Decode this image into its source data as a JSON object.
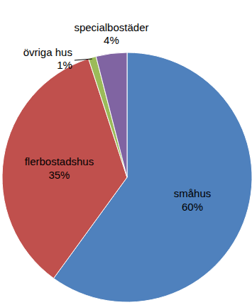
{
  "chart_data": {
    "type": "pie",
    "categories": [
      "småhus",
      "flerbostadshus",
      "övriga hus",
      "specialbostäder"
    ],
    "values": [
      60,
      35,
      1,
      4
    ],
    "value_labels": [
      "60%",
      "35%",
      "1%",
      "4%"
    ],
    "colors": [
      "#4f81bd",
      "#c0504d",
      "#9bbb59",
      "#8064a2"
    ],
    "data_labels": true
  }
}
